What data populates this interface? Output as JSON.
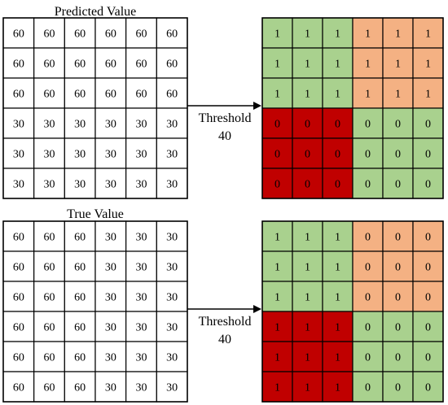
{
  "colors": {
    "green": "#a9d18e",
    "orange": "#f4b183",
    "red": "#c00000",
    "line": "#000000"
  },
  "panels": [
    {
      "title": "Predicted Value",
      "input": [
        [
          "60",
          "60",
          "60",
          "60",
          "60",
          "60"
        ],
        [
          "60",
          "60",
          "60",
          "60",
          "60",
          "60"
        ],
        [
          "60",
          "60",
          "60",
          "60",
          "60",
          "60"
        ],
        [
          "30",
          "30",
          "30",
          "30",
          "30",
          "30"
        ],
        [
          "30",
          "30",
          "30",
          "30",
          "30",
          "30"
        ],
        [
          "30",
          "30",
          "30",
          "30",
          "30",
          "30"
        ]
      ],
      "threshold_label": "Threshold",
      "threshold_value": "40",
      "output": [
        [
          "1",
          "1",
          "1",
          "1",
          "1",
          "1"
        ],
        [
          "1",
          "1",
          "1",
          "1",
          "1",
          "1"
        ],
        [
          "1",
          "1",
          "1",
          "1",
          "1",
          "1"
        ],
        [
          "0",
          "0",
          "0",
          "0",
          "0",
          "0"
        ],
        [
          "0",
          "0",
          "0",
          "0",
          "0",
          "0"
        ],
        [
          "0",
          "0",
          "0",
          "0",
          "0",
          "0"
        ]
      ]
    },
    {
      "title": "True Value",
      "input": [
        [
          "60",
          "60",
          "60",
          "30",
          "30",
          "30"
        ],
        [
          "60",
          "60",
          "60",
          "30",
          "30",
          "30"
        ],
        [
          "60",
          "60",
          "60",
          "30",
          "30",
          "30"
        ],
        [
          "60",
          "60",
          "60",
          "30",
          "30",
          "30"
        ],
        [
          "60",
          "60",
          "60",
          "30",
          "30",
          "30"
        ],
        [
          "60",
          "60",
          "60",
          "30",
          "30",
          "30"
        ]
      ],
      "threshold_label": "Threshold",
      "threshold_value": "40",
      "output": [
        [
          "1",
          "1",
          "1",
          "0",
          "0",
          "0"
        ],
        [
          "1",
          "1",
          "1",
          "0",
          "0",
          "0"
        ],
        [
          "1",
          "1",
          "1",
          "0",
          "0",
          "0"
        ],
        [
          "1",
          "1",
          "1",
          "0",
          "0",
          "0"
        ],
        [
          "1",
          "1",
          "1",
          "0",
          "0",
          "0"
        ],
        [
          "1",
          "1",
          "1",
          "0",
          "0",
          "0"
        ]
      ]
    }
  ]
}
